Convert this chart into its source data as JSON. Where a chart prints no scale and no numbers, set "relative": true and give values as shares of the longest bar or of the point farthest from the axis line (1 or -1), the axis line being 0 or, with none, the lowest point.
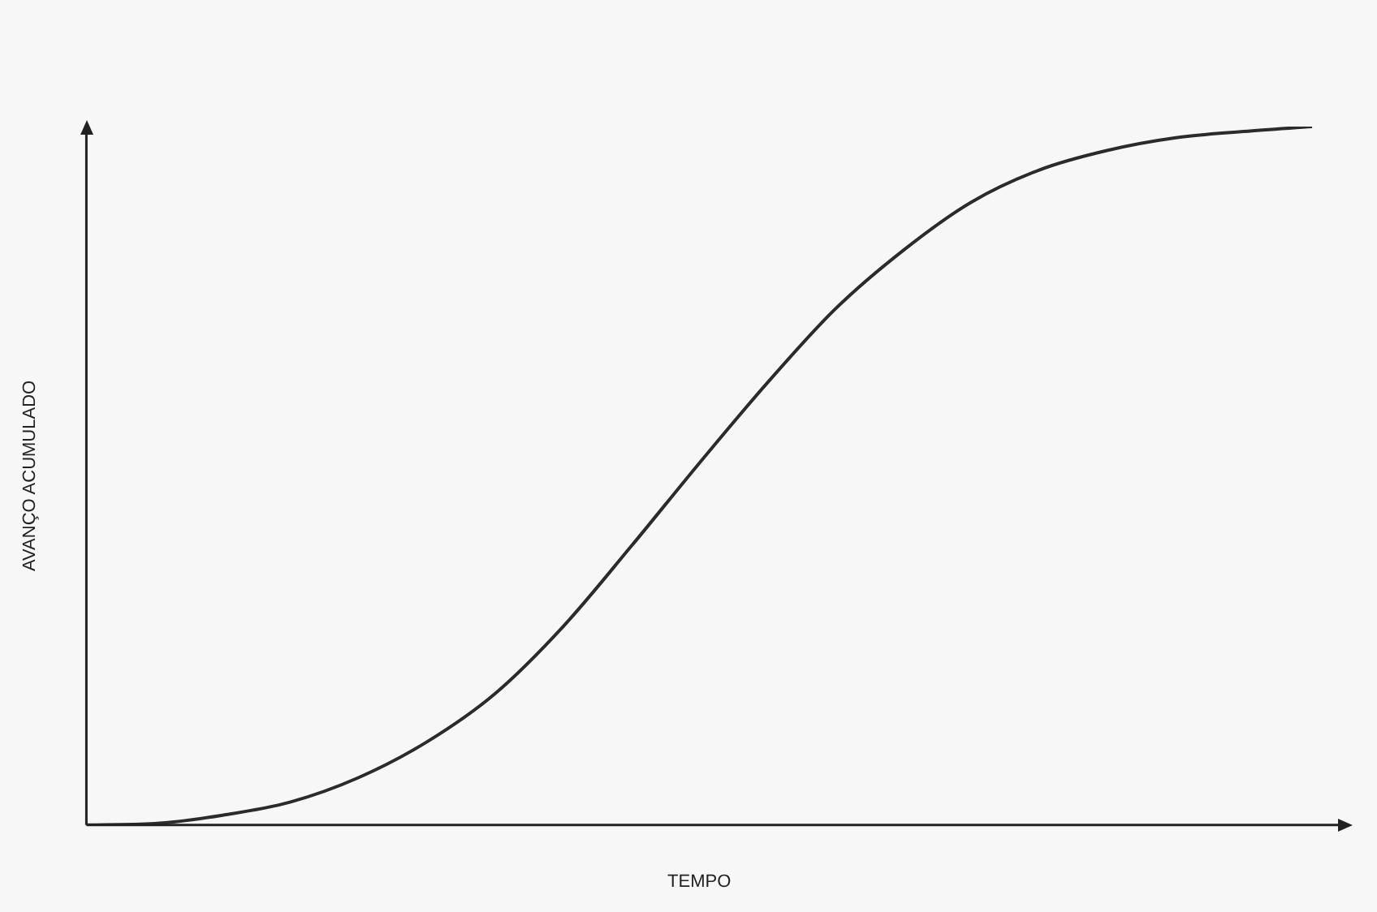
{
  "chart_data": {
    "type": "line",
    "xlabel": "TEMPO",
    "ylabel": "AVANÇO ACUMULADO",
    "relative": true,
    "legend": false,
    "grid": false,
    "marker": "none",
    "line_style": "solid",
    "categories": [
      null,
      null,
      null,
      null,
      null,
      null,
      null,
      null,
      null,
      null,
      null,
      null,
      null,
      null,
      null,
      null,
      null,
      null,
      null
    ],
    "series": [
      {
        "color": "#2b2b2b",
        "values": [
          0,
          0.002,
          0.014,
          0.033,
          0.068,
          0.119,
          0.188,
          0.284,
          0.399,
          0.518,
          0.633,
          0.739,
          0.823,
          0.892,
          0.938,
          0.966,
          0.984,
          0.993,
          1
        ]
      }
    ]
  }
}
